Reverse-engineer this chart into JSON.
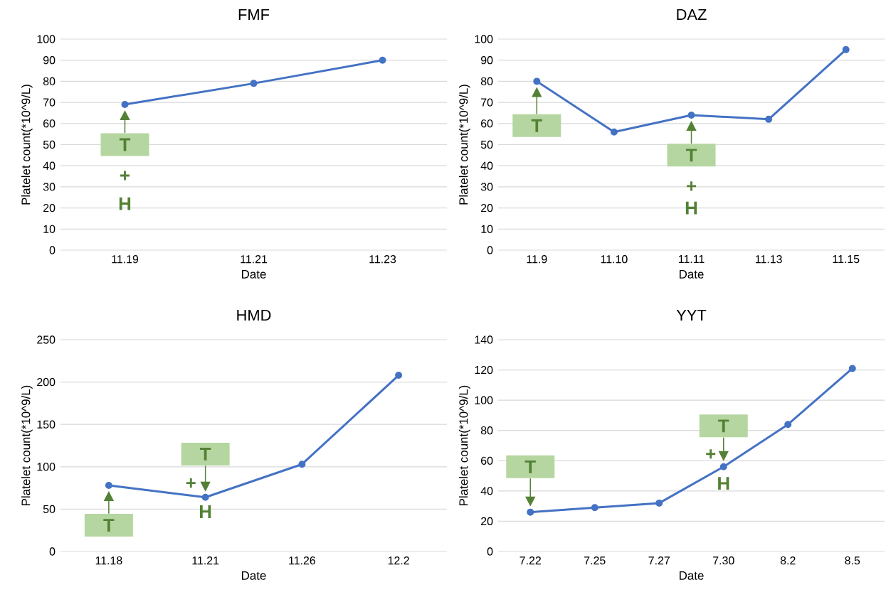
{
  "chart_data": [
    {
      "type": "line",
      "title": "FMF",
      "xlabel": "Date",
      "ylabel": "Platelet count(*10^9/L)",
      "categories": [
        "11.19",
        "11.21",
        "11.23"
      ],
      "series": [
        {
          "color": "#4472c4",
          "values": [
            69,
            79,
            90
          ]
        }
      ],
      "ylim": [
        0,
        100
      ],
      "yticks": [
        0,
        10,
        20,
        30,
        40,
        50,
        60,
        70,
        80,
        90,
        100
      ],
      "grid": "y",
      "marker": "circle",
      "annotations": [
        "T",
        "+",
        "H"
      ]
    },
    {
      "type": "line",
      "title": "DAZ",
      "xlabel": "Date",
      "ylabel": "Platelet count(*10^9/L)",
      "categories": [
        "11.9",
        "11.10",
        "11.11",
        "11.13",
        "11.15"
      ],
      "series": [
        {
          "color": "#4472c4",
          "values": [
            80,
            56,
            64,
            62,
            95
          ]
        }
      ],
      "ylim": [
        0,
        100
      ],
      "yticks": [
        0,
        10,
        20,
        30,
        40,
        50,
        60,
        70,
        80,
        90,
        100
      ],
      "grid": "y",
      "marker": "circle",
      "annotations": [
        "T",
        "T",
        "+",
        "H"
      ]
    },
    {
      "type": "line",
      "title": "HMD",
      "xlabel": "Date",
      "ylabel": "Platelet count(*10^9/L)",
      "categories": [
        "11.18",
        "11.21",
        "11.26",
        "12.2"
      ],
      "series": [
        {
          "color": "#4472c4",
          "values": [
            78,
            64,
            103,
            208
          ]
        }
      ],
      "ylim": [
        0,
        250
      ],
      "yticks": [
        0,
        50,
        100,
        150,
        200,
        250
      ],
      "grid": "y",
      "marker": "circle",
      "annotations": [
        "T",
        "T",
        "+",
        "H"
      ]
    },
    {
      "type": "line",
      "title": "YYT",
      "xlabel": "Date",
      "ylabel": "Platelet count(*10^9/L)",
      "categories": [
        "7.22",
        "7.25",
        "7.27",
        "7.30",
        "8.2",
        "8.5"
      ],
      "series": [
        {
          "color": "#4472c4",
          "values": [
            26,
            29,
            32,
            56,
            84,
            121
          ]
        }
      ],
      "ylim": [
        0,
        140
      ],
      "yticks": [
        0,
        20,
        40,
        60,
        80,
        100,
        120,
        140
      ],
      "grid": "y",
      "marker": "circle",
      "annotations": [
        "T",
        "T",
        "+",
        "H"
      ]
    }
  ]
}
